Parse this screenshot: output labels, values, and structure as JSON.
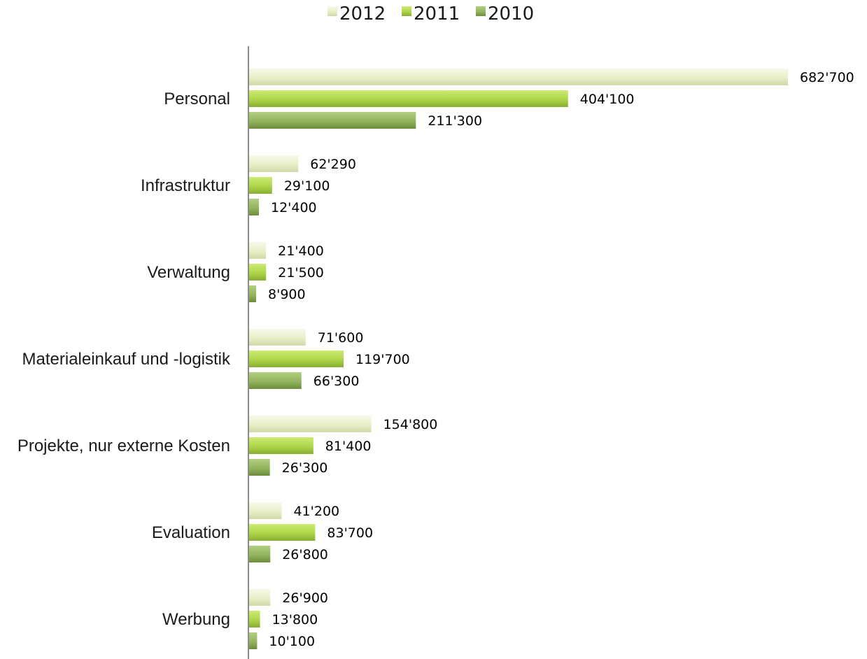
{
  "chart_data": {
    "type": "bar",
    "orientation": "horizontal",
    "title": "",
    "xlabel": "",
    "ylabel": "",
    "grid": false,
    "legend_position": "top-center",
    "xlim": [
      0,
      682700
    ],
    "categories": [
      "Personal",
      "Infrastruktur",
      "Verwaltung",
      "Materialeinkauf und -logistik",
      "Projekte, nur externe Kosten",
      "Evaluation",
      "Werbung"
    ],
    "series": [
      {
        "name": "2012",
        "color": "#eef3d6",
        "values": [
          682700,
          62290,
          21400,
          71600,
          154800,
          41200,
          26900
        ],
        "labels": [
          "682'700",
          "62'290",
          "21'400",
          "71'600",
          "154'800",
          "41'200",
          "26'900"
        ]
      },
      {
        "name": "2011",
        "color": "#b4dc4a",
        "values": [
          404100,
          29100,
          21500,
          119700,
          81400,
          83700,
          13800
        ],
        "labels": [
          "404'100",
          "29'100",
          "21'500",
          "119'700",
          "81'400",
          "83'700",
          "13'800"
        ]
      },
      {
        "name": "2010",
        "color": "#93b55e",
        "values": [
          211300,
          12400,
          8900,
          66300,
          26300,
          26800,
          10100
        ],
        "labels": [
          "211'300",
          "12'400",
          "8'900",
          "66'300",
          "26'300",
          "26'800",
          "10'100"
        ]
      }
    ]
  }
}
